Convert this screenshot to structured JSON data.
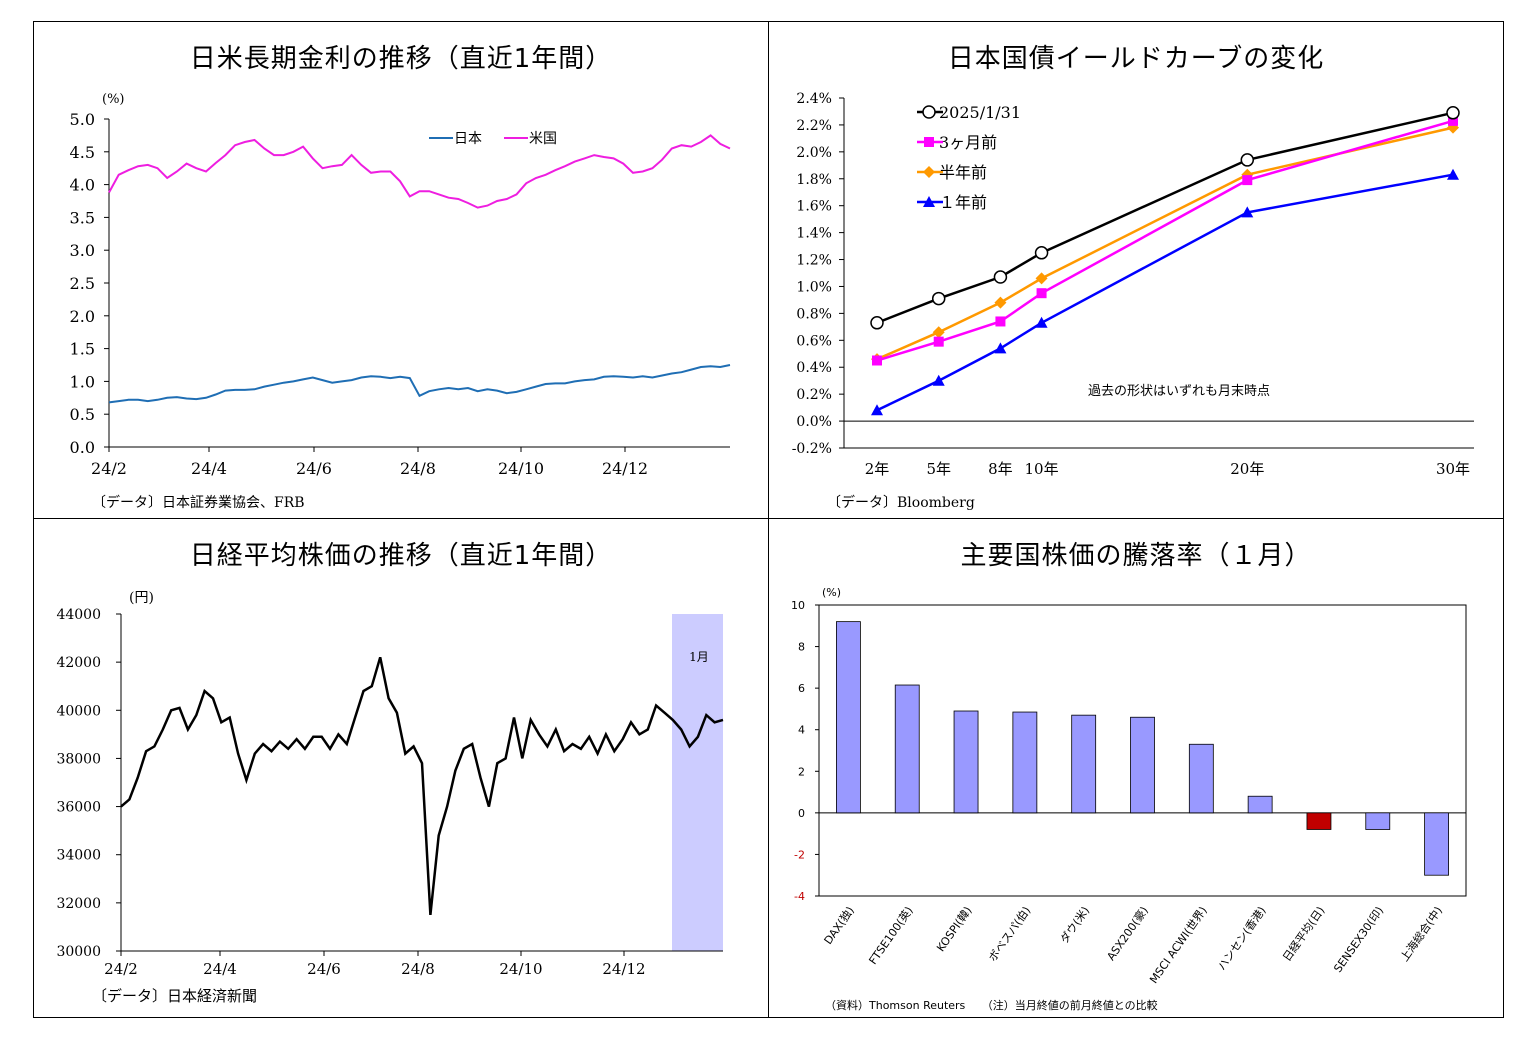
{
  "chart_data": [
    {
      "type": "line",
      "title": "日米長期金利の推移（直近1年間）",
      "unit_label": "(%)",
      "yticks": [
        "5.0",
        "4.5",
        "4.0",
        "3.5",
        "3.0",
        "2.5",
        "2.0",
        "1.5",
        "1.0",
        "0.5",
        "0.0"
      ],
      "ylim": [
        0,
        5
      ],
      "xticks": [
        "24/2",
        "24/4",
        "24/6",
        "24/8",
        "24/10",
        "24/12"
      ],
      "source": "〔データ〕日本証券業協会、FRB",
      "series": [
        {
          "name": "日本",
          "color": "#1f6eb4",
          "values": [
            0.68,
            0.7,
            0.72,
            0.72,
            0.7,
            0.72,
            0.75,
            0.76,
            0.74,
            0.73,
            0.75,
            0.8,
            0.86,
            0.87,
            0.87,
            0.88,
            0.92,
            0.95,
            0.98,
            1.0,
            1.03,
            1.06,
            1.02,
            0.98,
            1.0,
            1.02,
            1.06,
            1.08,
            1.07,
            1.05,
            1.07,
            1.05,
            0.78,
            0.85,
            0.88,
            0.9,
            0.88,
            0.9,
            0.85,
            0.88,
            0.86,
            0.82,
            0.84,
            0.88,
            0.92,
            0.96,
            0.97,
            0.97,
            1.0,
            1.02,
            1.03,
            1.07,
            1.08,
            1.07,
            1.06,
            1.08,
            1.06,
            1.09,
            1.12,
            1.14,
            1.18,
            1.22,
            1.23,
            1.22,
            1.25
          ]
        },
        {
          "name": "米国",
          "color": "#ee1ee0",
          "values": [
            3.88,
            4.15,
            4.22,
            4.28,
            4.3,
            4.25,
            4.1,
            4.2,
            4.32,
            4.25,
            4.2,
            4.33,
            4.45,
            4.6,
            4.65,
            4.68,
            4.55,
            4.45,
            4.45,
            4.5,
            4.58,
            4.4,
            4.25,
            4.28,
            4.3,
            4.45,
            4.3,
            4.18,
            4.2,
            4.2,
            4.05,
            3.82,
            3.9,
            3.9,
            3.85,
            3.8,
            3.78,
            3.72,
            3.65,
            3.68,
            3.75,
            3.78,
            3.85,
            4.02,
            4.1,
            4.15,
            4.22,
            4.28,
            4.35,
            4.4,
            4.45,
            4.42,
            4.4,
            4.32,
            4.18,
            4.2,
            4.25,
            4.38,
            4.55,
            4.6,
            4.58,
            4.65,
            4.75,
            4.62,
            4.55
          ]
        }
      ]
    },
    {
      "type": "line",
      "title": "日本国債イールドカーブの変化",
      "categories": [
        "2年",
        "5年",
        "8年",
        "10年",
        "20年",
        "30年"
      ],
      "maturities": [
        2,
        5,
        8,
        10,
        20,
        30
      ],
      "yticks": [
        "2.4%",
        "2.2%",
        "2.0%",
        "1.8%",
        "1.6%",
        "1.4%",
        "1.2%",
        "1.0%",
        "0.8%",
        "0.6%",
        "0.4%",
        "0.2%",
        "0.0%",
        "-0.2%"
      ],
      "ylim": [
        -0.2,
        2.4
      ],
      "annotation": "過去の形状はいずれも月末時点",
      "source": "〔データ〕Bloomberg",
      "series": [
        {
          "name": "2025/1/31",
          "color": "#000000",
          "marker": "circle",
          "values": [
            0.73,
            0.91,
            1.07,
            1.25,
            1.94,
            2.29
          ]
        },
        {
          "name": "3ヶ月前",
          "color": "#ff00ff",
          "marker": "square",
          "values": [
            0.45,
            0.59,
            0.74,
            0.95,
            1.79,
            2.23
          ]
        },
        {
          "name": "半年前",
          "color": "#ff9900",
          "marker": "diamond",
          "values": [
            0.46,
            0.66,
            0.88,
            1.06,
            1.83,
            2.18
          ]
        },
        {
          "name": "１年前",
          "color": "#0000ff",
          "marker": "triangle",
          "values": [
            0.08,
            0.3,
            0.54,
            0.73,
            1.55,
            1.83
          ]
        }
      ]
    },
    {
      "type": "line",
      "title": "日経平均株価の推移（直近1年間）",
      "unit_label": "(円)",
      "yticks": [
        "44000",
        "42000",
        "40000",
        "38000",
        "36000",
        "34000",
        "32000",
        "30000"
      ],
      "ylim": [
        30000,
        44000
      ],
      "xticks": [
        "24/2",
        "24/4",
        "24/6",
        "24/8",
        "24/10",
        "24/12"
      ],
      "highlight_label": "1月",
      "source": "〔データ〕日本経済新聞",
      "series": [
        {
          "name": "日経平均",
          "color": "#000000",
          "values": [
            36000,
            36300,
            37200,
            38300,
            38500,
            39200,
            40000,
            40100,
            39200,
            39800,
            40800,
            40500,
            39500,
            39700,
            38200,
            37100,
            38200,
            38600,
            38300,
            38700,
            38400,
            38800,
            38400,
            38900,
            38900,
            38400,
            39000,
            38600,
            39700,
            40800,
            41000,
            42200,
            40500,
            39900,
            38200,
            38500,
            37800,
            31500,
            34800,
            36000,
            37500,
            38400,
            38600,
            37200,
            36000,
            37800,
            38000,
            39700,
            38000,
            39600,
            39000,
            38500,
            39200,
            38300,
            38600,
            38400,
            38900,
            38200,
            39000,
            38300,
            38800,
            39500,
            39000,
            39200,
            40200,
            39900,
            39600,
            39200,
            38500,
            38900,
            39800,
            39500,
            39600
          ]
        }
      ]
    },
    {
      "type": "bar",
      "title": "主要国株価の騰落率（１月）",
      "unit_label": "(%)",
      "categories": [
        "DAX(独)",
        "FTSE100(英)",
        "KOSPI(韓)",
        "ボベスパ(伯)",
        "ダウ(米)",
        "ASX200(豪)",
        "MSCI ACWI(世界)",
        "ハンセン(香港)",
        "日経平均(日)",
        "SENSEX30(印)",
        "上海総合(中)"
      ],
      "values": [
        9.2,
        6.15,
        4.9,
        4.85,
        4.7,
        4.6,
        3.3,
        0.8,
        -0.8,
        -0.8,
        -3.0
      ],
      "highlight_index": 8,
      "colors": {
        "default": "#9999ff",
        "highlight": "#c00000"
      },
      "ylim": [
        -4,
        10
      ],
      "yticks": [
        "10",
        "8",
        "6",
        "4",
        "2",
        "0",
        "-2",
        "-4"
      ],
      "source_note": "（資料）Thomson Reuters　　（注）当月終値の前月終値との比較"
    }
  ]
}
